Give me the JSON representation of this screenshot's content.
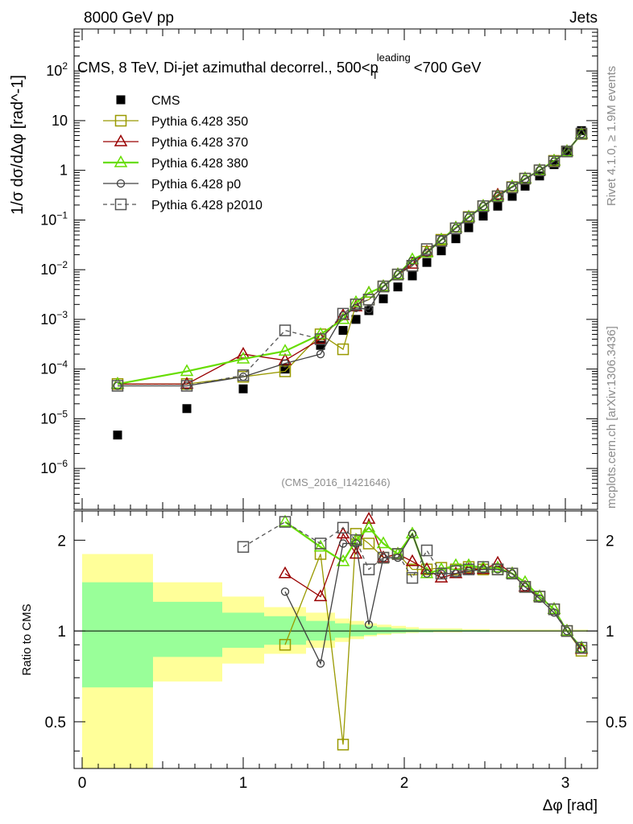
{
  "header": {
    "left": "8000 GeV pp",
    "right": "Jets"
  },
  "side_labels": {
    "rivet": "Rivet 4.1.0, ≥ 1.9M events",
    "mcplots": "mcplots.cern.ch [arXiv:1306.3436]"
  },
  "chart_data": [
    {
      "type": "scatter",
      "title": "CMS, 8 TeV, Di-jet azimuthal decorrel., 500<p_T^leading<700 GeV",
      "ylabel": "1/σ dσ/dΔφ [rad^-1]",
      "analysis_label": "(CMS_2016_I1421646)",
      "yscale": "log",
      "ylim": [
        1.5e-07,
        700
      ],
      "xlim": [
        -0.05,
        3.2
      ],
      "legend_position": "top-left",
      "series": [
        {
          "name": "CMS",
          "color": "#000000",
          "marker": "filled-square",
          "line": "none",
          "x": [
            0.22,
            0.65,
            1.0,
            1.26,
            1.48,
            1.62,
            1.7,
            1.78,
            1.87,
            1.96,
            2.05,
            2.14,
            2.23,
            2.32,
            2.4,
            2.49,
            2.58,
            2.67,
            2.75,
            2.84,
            2.93,
            3.01,
            3.1
          ],
          "y": [
            4.7e-06,
            1.6e-05,
            4e-05,
            0.0001,
            0.0003,
            0.0006,
            0.001,
            0.0015,
            0.0026,
            0.0045,
            0.0075,
            0.014,
            0.024,
            0.042,
            0.07,
            0.12,
            0.19,
            0.3,
            0.48,
            0.77,
            1.3,
            2.4,
            6.3
          ]
        },
        {
          "name": "Pythia 6.428 350",
          "color": "#999900",
          "marker": "open-square",
          "line": "solid",
          "x": [
            0.22,
            0.65,
            1.0,
            1.26,
            1.48,
            1.62,
            1.7,
            1.78,
            1.87,
            1.96,
            2.05,
            2.14,
            2.23,
            2.32,
            2.4,
            2.49,
            2.58,
            2.67,
            2.75,
            2.84,
            2.93,
            3.01,
            3.1
          ],
          "y": [
            5e-05,
            5e-05,
            7e-05,
            9e-05,
            0.0005,
            0.00025,
            0.002,
            0.0025,
            0.0046,
            0.008,
            0.012,
            0.023,
            0.04,
            0.068,
            0.115,
            0.19,
            0.3,
            0.46,
            0.68,
            1.0,
            1.55,
            2.4,
            5.4
          ]
        },
        {
          "name": "Pythia 6.428 370",
          "color": "#990000",
          "marker": "open-triangle",
          "line": "solid",
          "x": [
            0.22,
            0.65,
            1.0,
            1.26,
            1.48,
            1.62,
            1.7,
            1.78,
            1.87,
            1.96,
            2.05,
            2.14,
            2.23,
            2.32,
            2.4,
            2.49,
            2.58,
            2.67,
            2.75,
            2.84,
            2.93,
            3.01,
            3.1
          ],
          "y": [
            5e-05,
            5e-05,
            0.0002,
            0.00015,
            0.0004,
            0.0012,
            0.0018,
            0.0034,
            0.0046,
            0.008,
            0.013,
            0.023,
            0.04,
            0.07,
            0.115,
            0.19,
            0.32,
            0.47,
            0.68,
            1.0,
            1.55,
            2.4,
            5.4
          ]
        },
        {
          "name": "Pythia 6.428 380",
          "color": "#66dd00",
          "marker": "open-triangle",
          "line": "solid",
          "x": [
            0.22,
            0.65,
            1.0,
            1.26,
            1.48,
            1.62,
            1.7,
            1.78,
            1.87,
            1.96,
            2.05,
            2.14,
            2.23,
            2.32,
            2.4,
            2.49,
            2.58,
            2.67,
            2.75,
            2.84,
            2.93,
            3.01,
            3.1
          ],
          "y": [
            5e-05,
            9e-05,
            0.00016,
            0.00023,
            0.0005,
            0.001,
            0.0022,
            0.0034,
            0.0046,
            0.008,
            0.016,
            0.022,
            0.04,
            0.07,
            0.115,
            0.19,
            0.3,
            0.47,
            0.68,
            1.0,
            1.55,
            2.4,
            5.4
          ]
        },
        {
          "name": "Pythia 6.428 p0",
          "color": "#404040",
          "marker": "open-circle",
          "line": "solid",
          "x": [
            0.22,
            0.65,
            1.0,
            1.26,
            1.48,
            1.62,
            1.7,
            1.78,
            1.87,
            1.96,
            2.05,
            2.14,
            2.23,
            2.32,
            2.4,
            2.49,
            2.58,
            2.67,
            2.75,
            2.84,
            2.93,
            3.01,
            3.1
          ],
          "y": [
            4.6e-05,
            4.6e-05,
            7e-05,
            0.00013,
            0.0002,
            0.0012,
            0.0017,
            0.0016,
            0.0046,
            0.008,
            0.015,
            0.022,
            0.04,
            0.068,
            0.112,
            0.19,
            0.3,
            0.46,
            0.66,
            1.0,
            1.5,
            2.4,
            5.4
          ]
        },
        {
          "name": "Pythia 6.428 p2010",
          "color": "#555555",
          "marker": "open-square",
          "line": "dashed",
          "x": [
            0.22,
            0.65,
            1.0,
            1.26,
            1.48,
            1.62,
            1.7,
            1.78,
            1.87,
            1.96,
            2.05,
            2.14,
            2.23,
            2.32,
            2.4,
            2.49,
            2.58,
            2.67,
            2.75,
            2.84,
            2.93,
            3.01,
            3.1
          ],
          "y": [
            4.6e-05,
            4.6e-05,
            7.5e-05,
            0.0006,
            0.0004,
            0.0013,
            0.002,
            0.0025,
            0.0046,
            0.008,
            0.012,
            0.026,
            0.038,
            0.068,
            0.112,
            0.19,
            0.3,
            0.45,
            0.68,
            1.0,
            1.5,
            2.4,
            5.5
          ]
        }
      ]
    },
    {
      "type": "scatter",
      "ylabel": "Ratio to CMS",
      "xlabel": "Δφ [rad]",
      "yscale": "log",
      "ylim": [
        0.35,
        2.5
      ],
      "xlim": [
        -0.05,
        3.2
      ],
      "x_ticks": [
        "0",
        "1",
        "2",
        "3"
      ],
      "y_ticks": [
        "0.5",
        "1",
        "2"
      ],
      "bands": {
        "yellow": {
          "color": "#ffff99",
          "lower": [
            0.3,
            0.68,
            0.78,
            0.84,
            0.88,
            0.92,
            0.94,
            0.96,
            0.97,
            0.98,
            0.985,
            0.99,
            0.99,
            0.99,
            0.995,
            0.995,
            0.995,
            0.995,
            0.995,
            0.995,
            0.995,
            0.995,
            0.995
          ],
          "upper": [
            1.8,
            1.45,
            1.3,
            1.2,
            1.15,
            1.1,
            1.08,
            1.06,
            1.05,
            1.04,
            1.03,
            1.02,
            1.02,
            1.02,
            1.015,
            1.015,
            1.01,
            1.01,
            1.01,
            1.01,
            1.01,
            1.01,
            1.01
          ]
        },
        "green": {
          "color": "#99ff99",
          "lower": [
            0.65,
            0.82,
            0.88,
            0.9,
            0.93,
            0.95,
            0.96,
            0.97,
            0.98,
            0.985,
            0.99,
            0.99,
            0.995,
            0.995,
            0.995,
            0.995,
            0.997,
            0.997,
            0.997,
            0.997,
            0.997,
            0.997,
            0.997
          ],
          "upper": [
            1.45,
            1.25,
            1.15,
            1.12,
            1.08,
            1.06,
            1.05,
            1.04,
            1.03,
            1.02,
            1.015,
            1.01,
            1.01,
            1.01,
            1.008,
            1.008,
            1.005,
            1.005,
            1.005,
            1.005,
            1.005,
            1.005,
            1.005
          ]
        }
      },
      "series": [
        {
          "name": "Pythia 6.428 350",
          "color": "#999900",
          "marker": "open-square",
          "line": "solid",
          "x": [
            1.26,
            1.48,
            1.62,
            1.7,
            1.78,
            1.87,
            1.96,
            2.05,
            2.14,
            2.23,
            2.32,
            2.4,
            2.49,
            2.58,
            2.67,
            2.75,
            2.84,
            2.93,
            3.01,
            3.1
          ],
          "y": [
            0.9,
            1.8,
            0.42,
            2.1,
            1.95,
            1.75,
            1.8,
            1.6,
            1.6,
            1.62,
            1.6,
            1.63,
            1.6,
            1.6,
            1.55,
            1.4,
            1.3,
            1.18,
            1.0,
            0.86
          ]
        },
        {
          "name": "Pythia 6.428 370",
          "color": "#990000",
          "marker": "open-triangle",
          "line": "solid",
          "x": [
            1.26,
            1.48,
            1.62,
            1.7,
            1.78,
            1.87,
            1.96,
            2.05,
            2.14,
            2.23,
            2.32,
            2.4,
            2.49,
            2.58,
            2.67,
            2.75,
            2.84,
            2.93,
            3.01,
            3.1
          ],
          "y": [
            1.55,
            1.3,
            2.1,
            1.8,
            2.35,
            1.75,
            1.8,
            1.7,
            1.6,
            1.5,
            1.55,
            1.6,
            1.6,
            1.68,
            1.55,
            1.4,
            1.3,
            1.18,
            1.0,
            0.87
          ]
        },
        {
          "name": "Pythia 6.428 380",
          "color": "#66dd00",
          "marker": "open-triangle",
          "line": "solid",
          "x": [
            1.26,
            1.48,
            1.62,
            1.7,
            1.78,
            1.87,
            1.96,
            2.05,
            2.14,
            2.23,
            2.32,
            2.4,
            2.49,
            2.58,
            2.67,
            2.75,
            2.84,
            2.93,
            3.01,
            3.1
          ],
          "y": [
            2.3,
            1.9,
            1.7,
            2.0,
            2.2,
            1.95,
            1.8,
            2.1,
            1.55,
            1.6,
            1.65,
            1.65,
            1.62,
            1.62,
            1.55,
            1.45,
            1.3,
            1.18,
            1.0,
            0.88
          ]
        },
        {
          "name": "Pythia 6.428 p0",
          "color": "#404040",
          "marker": "open-circle",
          "line": "solid",
          "x": [
            1.26,
            1.48,
            1.62,
            1.7,
            1.78,
            1.87,
            1.96,
            2.05,
            2.14,
            2.23,
            2.32,
            2.4,
            2.49,
            2.58,
            2.67,
            2.75,
            2.84,
            2.93,
            3.01,
            3.1
          ],
          "y": [
            1.35,
            0.78,
            1.95,
            1.95,
            1.05,
            1.75,
            1.75,
            2.1,
            1.55,
            1.55,
            1.55,
            1.58,
            1.6,
            1.6,
            1.55,
            1.4,
            1.28,
            1.15,
            1.0,
            0.87
          ]
        },
        {
          "name": "Pythia 6.428 p2010",
          "color": "#555555",
          "marker": "open-square",
          "line": "dashed",
          "x": [
            1.0,
            1.26,
            1.48,
            1.62,
            1.7,
            1.78,
            1.87,
            1.96,
            2.05,
            2.14,
            2.23,
            2.32,
            2.4,
            2.49,
            2.58,
            2.67,
            2.75,
            2.84,
            2.93,
            3.01,
            3.1
          ],
          "y": [
            1.9,
            2.3,
            1.95,
            2.2,
            2.0,
            1.6,
            1.75,
            1.8,
            1.5,
            1.85,
            1.55,
            1.58,
            1.6,
            1.63,
            1.6,
            1.55,
            1.4,
            1.3,
            1.18,
            1.0,
            0.88
          ]
        }
      ]
    }
  ]
}
